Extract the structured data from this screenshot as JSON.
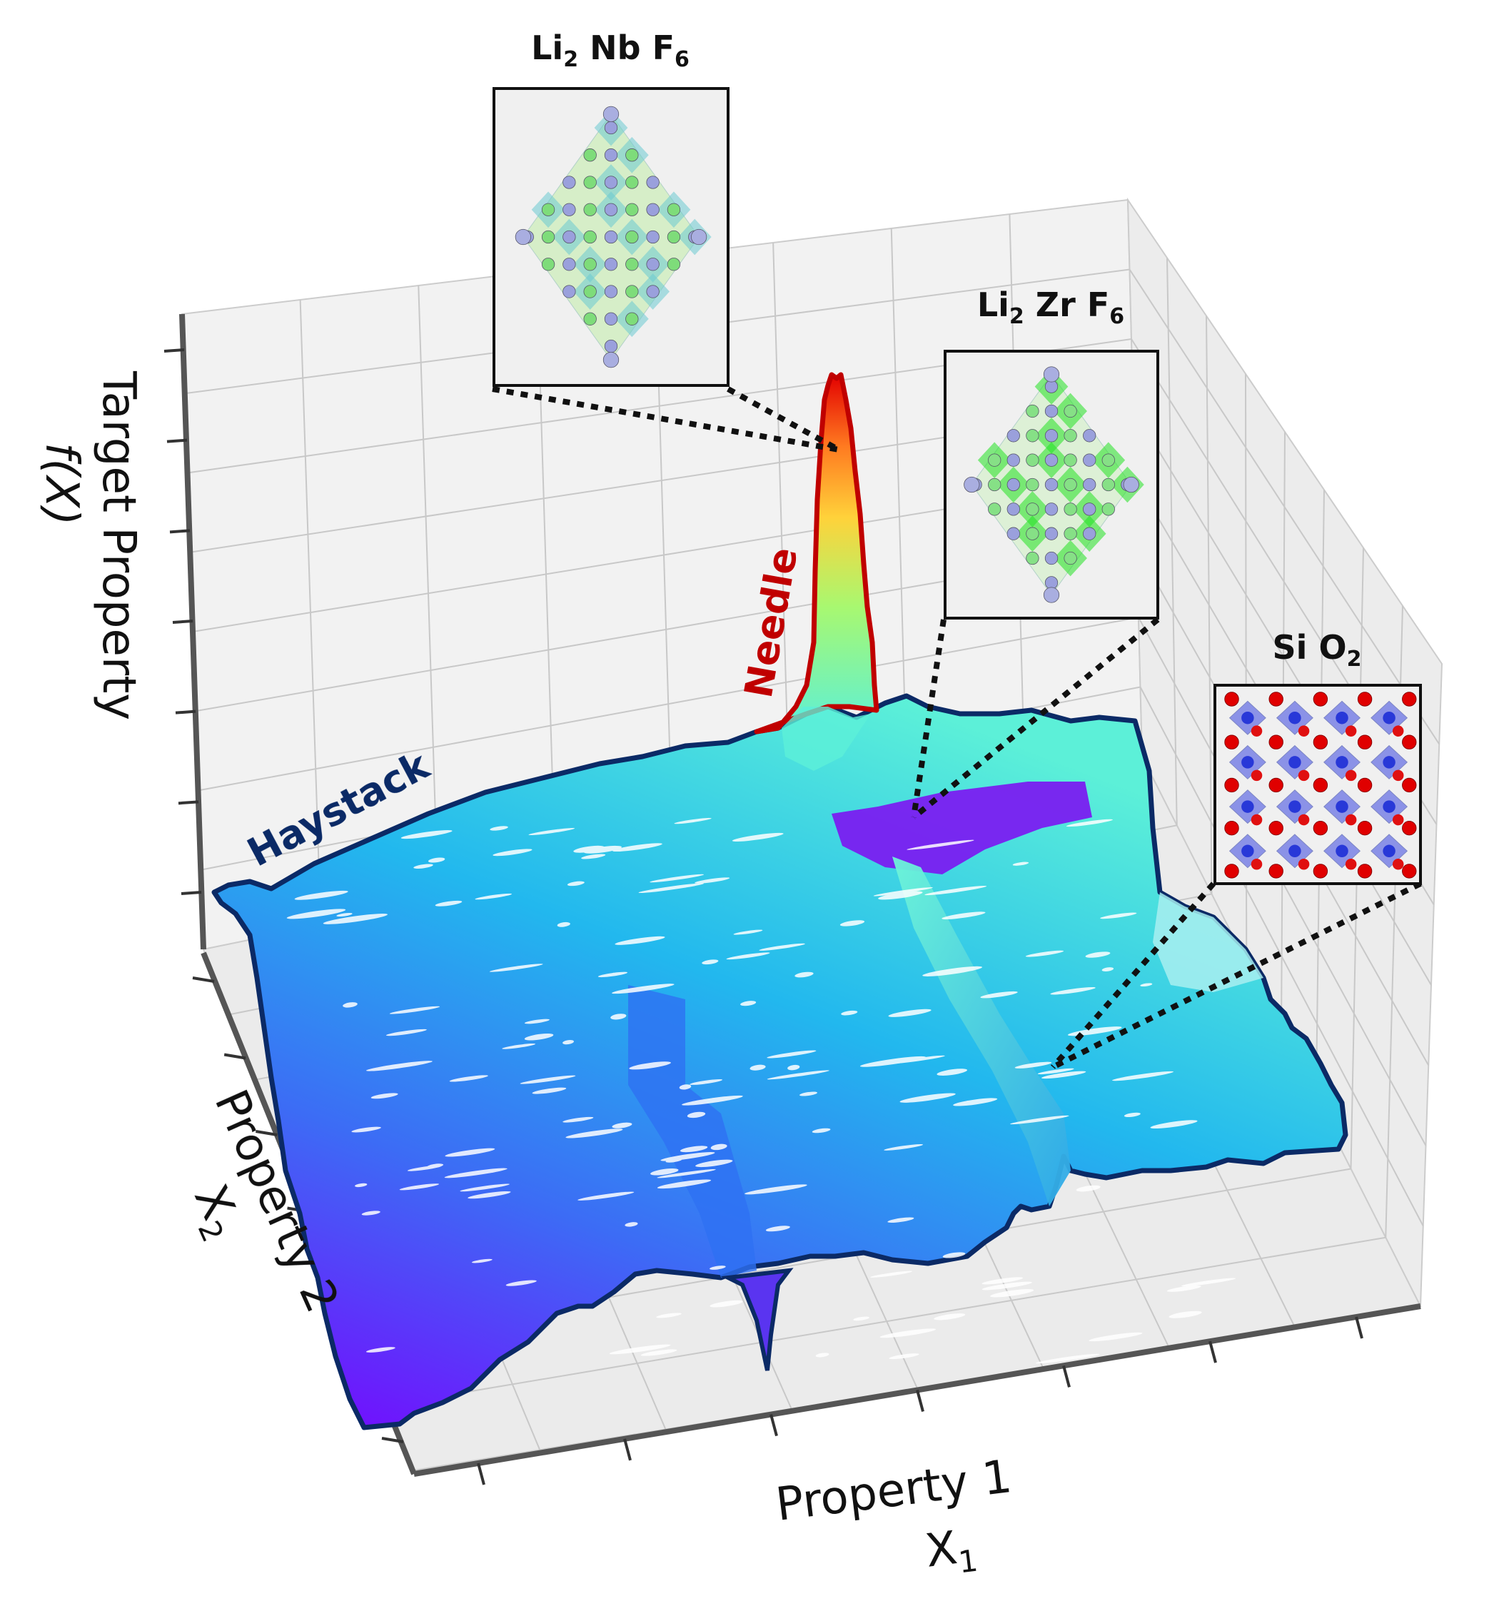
{
  "chart_data": {
    "type": "surface3d",
    "title": "",
    "zlabel_line1": "Target Property",
    "zlabel_line2": "f(X)",
    "ylabel_line1": "Property 2",
    "ylabel_line2": "X",
    "ylabel_sub": "2",
    "xlabel_line1": "Property 1",
    "xlabel_line2": "X",
    "xlabel_sub": "1",
    "grid": true,
    "colormap": "rainbow",
    "regions": [
      {
        "name": "Haystack",
        "color": "#0b2a66"
      },
      {
        "name": "Needle",
        "color": "#c00000"
      }
    ],
    "materials": [
      {
        "parts": [
          {
            "el": "Li",
            "n": "2"
          },
          {
            "el": "Nb",
            "n": ""
          },
          {
            "el": "F",
            "n": "6"
          }
        ],
        "location": "needle peak"
      },
      {
        "parts": [
          {
            "el": "Li",
            "n": "2"
          },
          {
            "el": "Zr",
            "n": ""
          },
          {
            "el": "F",
            "n": "6"
          }
        ],
        "location": "secondary ridge"
      },
      {
        "parts": [
          {
            "el": "Si",
            "n": ""
          },
          {
            "el": "O",
            "n": "2"
          }
        ],
        "location": "haystack ridge"
      }
    ]
  }
}
